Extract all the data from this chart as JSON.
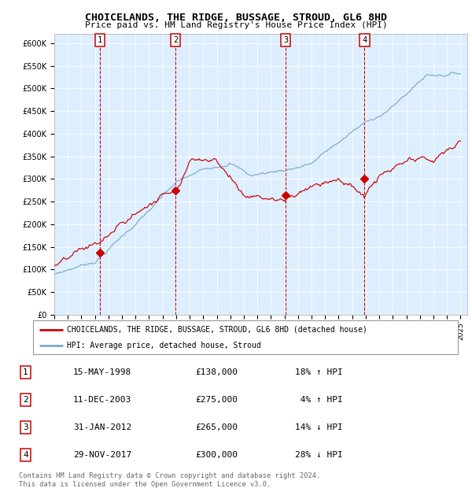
{
  "title": "CHOICELANDS, THE RIDGE, BUSSAGE, STROUD, GL6 8HD",
  "subtitle": "Price paid vs. HM Land Registry's House Price Index (HPI)",
  "ylabel_ticks": [
    "£0",
    "£50K",
    "£100K",
    "£150K",
    "£200K",
    "£250K",
    "£300K",
    "£350K",
    "£400K",
    "£450K",
    "£500K",
    "£550K",
    "£600K"
  ],
  "ytick_values": [
    0,
    50000,
    100000,
    150000,
    200000,
    250000,
    300000,
    350000,
    400000,
    450000,
    500000,
    550000,
    600000
  ],
  "ylim": [
    0,
    620000
  ],
  "xlim_start": 1995.0,
  "xlim_end": 2025.5,
  "sale_points": [
    {
      "date_num": 1998.37,
      "price": 138000,
      "label": "1"
    },
    {
      "date_num": 2003.94,
      "price": 275000,
      "label": "2"
    },
    {
      "date_num": 2012.08,
      "price": 265000,
      "label": "3"
    },
    {
      "date_num": 2017.91,
      "price": 300000,
      "label": "4"
    }
  ],
  "vline_dates": [
    1998.37,
    2003.94,
    2012.08,
    2017.91
  ],
  "red_color": "#cc0000",
  "blue_color": "#7aaacc",
  "background_color": "#ddeeff",
  "legend_entries": [
    "CHOICELANDS, THE RIDGE, BUSSAGE, STROUD, GL6 8HD (detached house)",
    "HPI: Average price, detached house, Stroud"
  ],
  "table_rows": [
    [
      "1",
      "15-MAY-1998",
      "£138,000",
      "18% ↑ HPI"
    ],
    [
      "2",
      "11-DEC-2003",
      "£275,000",
      " 4% ↑ HPI"
    ],
    [
      "3",
      "31-JAN-2012",
      "£265,000",
      "14% ↓ HPI"
    ],
    [
      "4",
      "29-NOV-2017",
      "£300,000",
      "28% ↓ HPI"
    ]
  ],
  "footer": "Contains HM Land Registry data © Crown copyright and database right 2024.\nThis data is licensed under the Open Government Licence v3.0."
}
